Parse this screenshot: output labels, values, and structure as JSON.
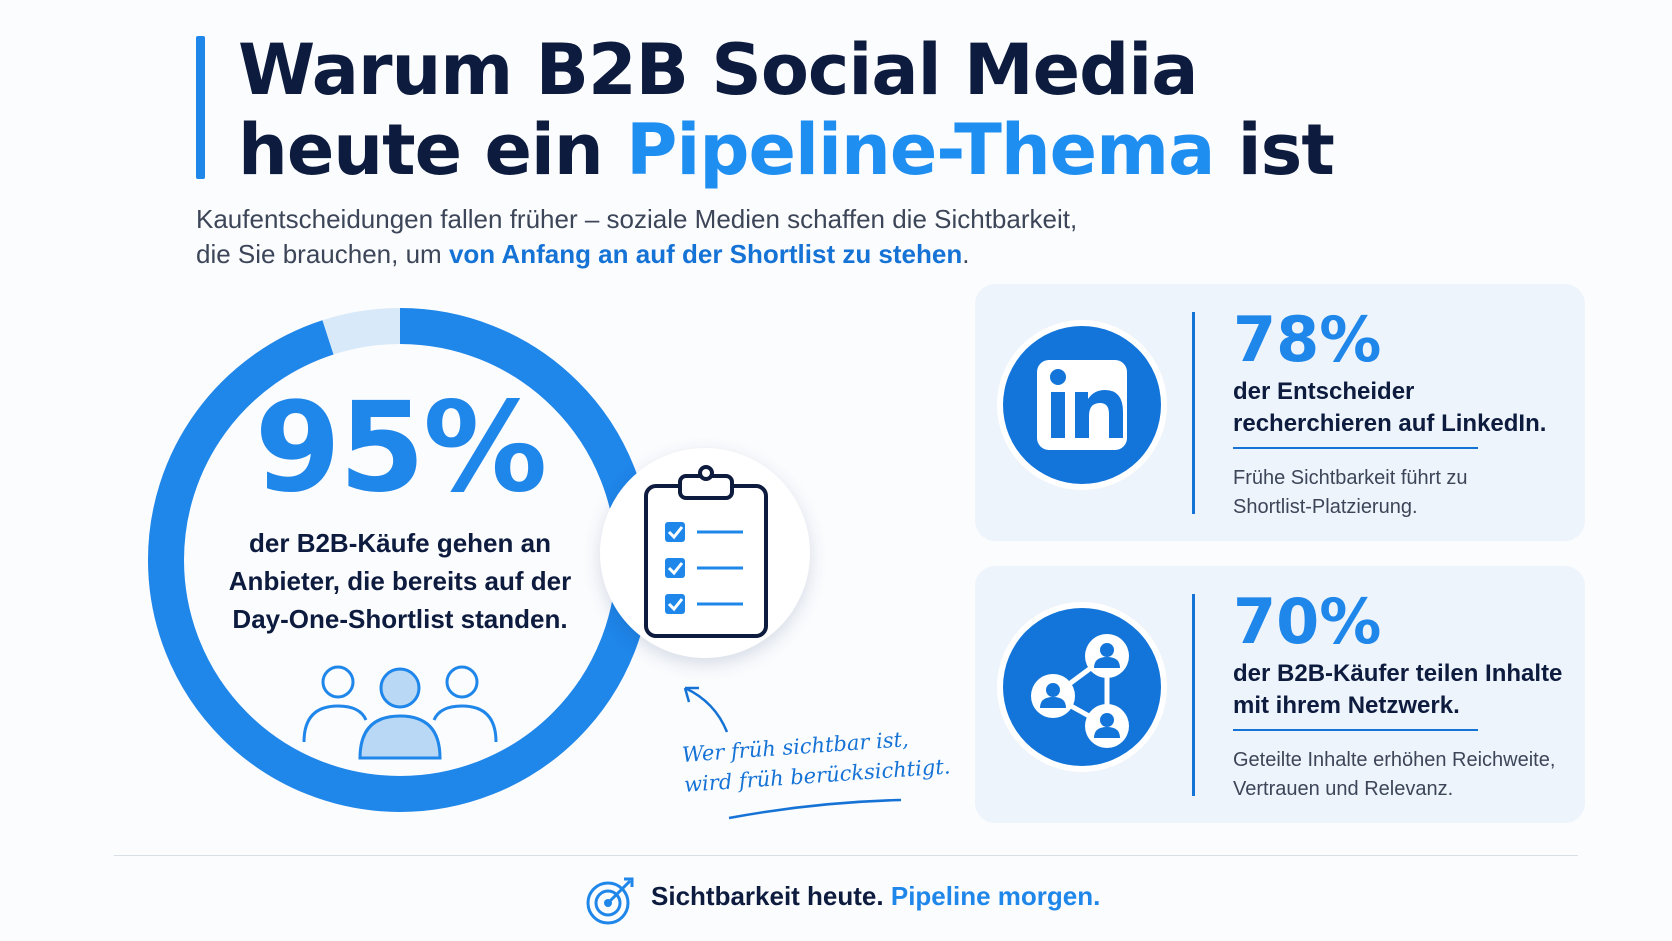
{
  "header": {
    "title_line1": "Warum B2B Social Media",
    "title_line2_prefix": "heute ein ",
    "title_line2_highlight": "Pipeline-Thema",
    "title_line2_suffix": " ist",
    "subtitle_line1": "Kaufentscheidungen fallen früher – soziale Medien schaffen die Sichtbarkeit,",
    "subtitle_line2_prefix": "die Sie brauchen, um ",
    "subtitle_line2_highlight": "von Anfang an auf der Shortlist zu stehen",
    "subtitle_line2_suffix": "."
  },
  "main_stat": {
    "value": "95%",
    "ring_fill_fraction": 0.95,
    "description_line1": "der B2B-Käufe gehen an",
    "description_line2": "Anbieter, die bereits auf der",
    "description_line3": "Day-One-Shortlist standen."
  },
  "handwritten_note": {
    "line1": "Wer früh sichtbar ist,",
    "line2": "wird früh berücksichtigt."
  },
  "stats": [
    {
      "icon": "linkedin-icon",
      "value": "78%",
      "line1": "der Entscheider",
      "line2": "recherchieren auf LinkedIn.",
      "note_line1": "Frühe Sichtbarkeit führt zu",
      "note_line2": "Shortlist-Platzierung."
    },
    {
      "icon": "network-icon",
      "value": "70%",
      "line1": "der B2B-Käufer teilen Inhalte",
      "line2": "mit ihrem Netzwerk.",
      "note_line1": "Geteilte Inhalte erhöhen Reichweite,",
      "note_line2": "Vertrauen und Relevanz."
    }
  ],
  "footer": {
    "icon": "target-icon",
    "text": "Sichtbarkeit heute.",
    "highlight": "Pipeline morgen."
  },
  "colors": {
    "accent": "#1f86ea",
    "dark": "#0d1b3e",
    "card_bg": "#eef4fb",
    "ring_track": "#d8eaf9"
  }
}
